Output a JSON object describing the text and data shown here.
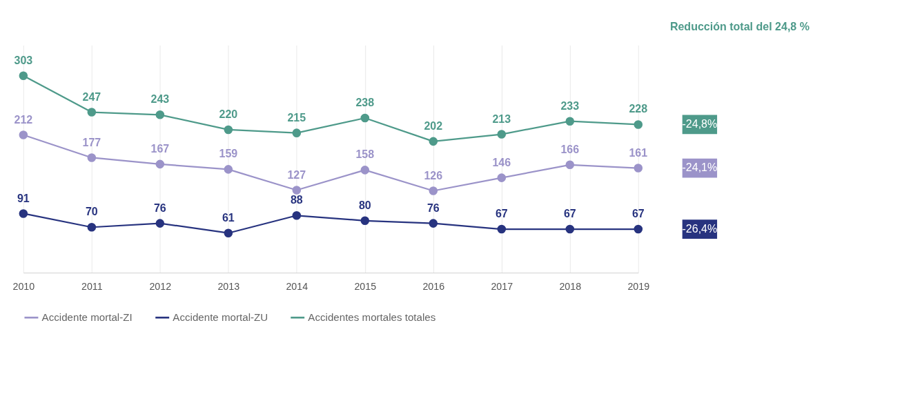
{
  "chart_data": {
    "type": "line",
    "categories": [
      "2010",
      "2011",
      "2012",
      "2013",
      "2014",
      "2015",
      "2016",
      "2017",
      "2018",
      "2019"
    ],
    "series": [
      {
        "name": "Accidente mortal-ZI",
        "color": "#9b93c9",
        "values": [
          212,
          177,
          167,
          159,
          127,
          158,
          126,
          146,
          166,
          161
        ]
      },
      {
        "name": "Accidente mortal-ZU",
        "color": "#27337f",
        "values": [
          91,
          70,
          76,
          61,
          88,
          80,
          76,
          67,
          67,
          67
        ]
      },
      {
        "name": "Accidentes mortales totales",
        "color": "#4e9a8a",
        "values": [
          303,
          247,
          243,
          220,
          215,
          238,
          202,
          213,
          233,
          228
        ]
      }
    ],
    "annotations": [
      "Reducción total del 24,8 %",
      "-24,8%",
      "-24,1%",
      "-26,4%"
    ],
    "data_labels": true,
    "grid": "x",
    "legend": "bottom",
    "marker": "circle",
    "line_style": "solid"
  }
}
